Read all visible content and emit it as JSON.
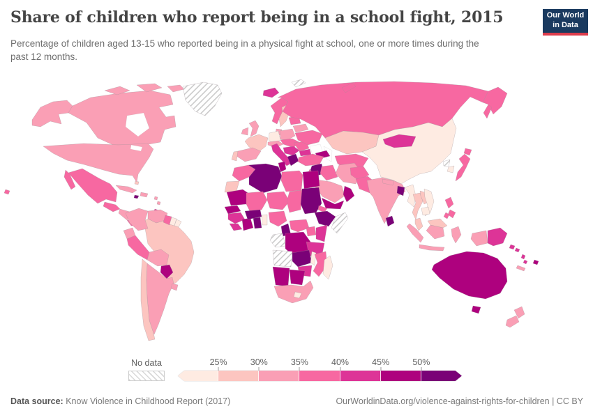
{
  "header": {
    "title": "Share of children who report being in a school fight, 2015",
    "subtitle": "Percentage of children aged 13-15 who reported being in a physical fight at school, one or more times during the past 12 months."
  },
  "logo": {
    "line1": "Our World",
    "line2": "in Data"
  },
  "legend": {
    "no_data_label": "No data",
    "tick_labels": [
      "25%",
      "30%",
      "35%",
      "40%",
      "45%",
      "50%"
    ],
    "band_colors": [
      "#feebe2",
      "#fcc5c0",
      "#fa9fb5",
      "#f768a1",
      "#dd3497",
      "#ae017e",
      "#7a0177"
    ],
    "accent_navy": "#1a3a5f",
    "accent_red": "#dc3c4c"
  },
  "footer": {
    "source_label": "Data source:",
    "source_value": "Know Violence in Childhood Report (2017)",
    "license": "OurWorldinData.org/violence-against-rights-for-children | CC BY"
  },
  "chart_data": {
    "type": "heatmap",
    "subtype": "choropleth-world-map",
    "title": "Share of children who report being in a school fight, 2015",
    "unit": "%",
    "year": "2015",
    "legend_position": "bottom",
    "bins": [
      "<25%",
      "25-30%",
      "30-35%",
      "35-40%",
      "40-45%",
      "45-50%",
      ">50%",
      "No data"
    ],
    "regions": {
      "alaska": "30-35%",
      "canada": "30-35%",
      "usa": "30-35%",
      "greenland": "No data",
      "mexico": "35-40%",
      "guatemala": "35-40%",
      "honduras_nicaragua": "30-35%",
      "costa_rica_panama": "35-40%",
      "cuba": "30-35%",
      "jamaica": ">50%",
      "hispaniola": "30-35%",
      "bahamas": "25-30%",
      "lesser_antilles": "30-35%",
      "trinidad": "40-45%",
      "hawaii": "35-40%",
      "colombia": "30-35%",
      "venezuela": "30-35%",
      "guyana": "35-40%",
      "suriname": "<25%",
      "french_guiana": "<25%",
      "ecuador": "30-35%",
      "peru": "35-40%",
      "brazil": "25-30%",
      "bolivia": "30-35%",
      "paraguay": "45-50%",
      "chile": "25-30%",
      "argentina": "30-35%",
      "uruguay": "30-35%",
      "iceland": "40-45%",
      "norway": "35-40%",
      "sweden": "25-30%",
      "finland": "25-30%",
      "denmark": "30-35%",
      "uk": "30-35%",
      "ireland": "30-35%",
      "germany": "<25%",
      "france": "25-30%",
      "spain": "30-35%",
      "portugal": "25-30%",
      "italy": "40-45%",
      "alpine": "30-35%",
      "poland": "30-35%",
      "czech_hungary": "35-40%",
      "balkans": "40-45%",
      "greece": ">50%",
      "romania": "35-40%",
      "bulgaria": "40-45%",
      "ukraine": "35-40%",
      "belarus": "30-35%",
      "baltics": "35-40%",
      "svalbard": "No data",
      "russia": "35-40%",
      "kazakhstan": "25-30%",
      "caucasus": "45-50%",
      "central_asia": "35-40%",
      "turkey": "35-40%",
      "syria": ">50%",
      "israel_jordan": "35-40%",
      "iraq": "35-40%",
      "iran": "30-35%",
      "saudi_arabia": "30-35%",
      "yemen": "45-50%",
      "oman": "45-50%",
      "afghanistan": "35-40%",
      "pakistan": "35-40%",
      "india": "30-35%",
      "nepal": "30-35%",
      "bangladesh": ">50%",
      "myanmar": "<25%",
      "sri_lanka": ">50%",
      "china": "<25%",
      "mongolia": "40-45%",
      "north_korea": "No data",
      "south_korea": "<25%",
      "japan": "35-40%",
      "thailand": "25-30%",
      "laos": "25-30%",
      "vietnam": "<25%",
      "cambodia": "<25%",
      "malaysia": "25-30%",
      "sumatra": "30-35%",
      "java": "30-35%",
      "borneo_my": "25-30%",
      "borneo_id": "30-35%",
      "sulawesi": "30-35%",
      "philippines": "35-40%",
      "west_papua": "30-35%",
      "papua_new_guinea": "40-45%",
      "australia": "45-50%",
      "tasmania": "45-50%",
      "new_zealand": "30-35%",
      "solomon_islands": "40-45%",
      "vanuatu": "40-45%",
      "fiji": "45-50%",
      "new_caledonia": "30-35%",
      "morocco": "35-40%",
      "western_sahara": "25-30%",
      "algeria": ">50%",
      "tunisia": "45-50%",
      "libya": "35-40%",
      "egypt": "45-50%",
      "mauritania": "45-50%",
      "mali": "35-40%",
      "niger": "35-40%",
      "chad": "35-40%",
      "sudan": ">50%",
      "eritrea": "35-40%",
      "ethiopia": ">50%",
      "somalia": "No data",
      "senegal": "45-50%",
      "guinea": "40-45%",
      "sierra_leone_liberia": "40-45%",
      "ivory_coast": "45-50%",
      "ghana": ">50%",
      "benin_togo": "<25%",
      "burkina_faso": ">50%",
      "nigeria": "35-40%",
      "cameroon": ">50%",
      "central_african_republic": "35-40%",
      "gabon_congo": "No data",
      "drc": "45-50%",
      "uganda": "35-40%",
      "kenya": "40-45%",
      "tanzania": "40-45%",
      "angola": "No data",
      "zambia": ">50%",
      "malawi": "<25%",
      "mozambique": "35-40%",
      "zimbabwe": "40-45%",
      "namibia": "45-50%",
      "botswana": "45-50%",
      "south_africa": "30-35%",
      "lesotho": "<25%",
      "madagascar": "<25%"
    }
  }
}
